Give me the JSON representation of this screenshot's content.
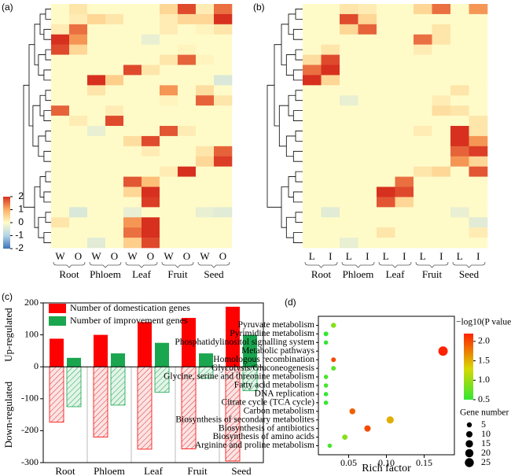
{
  "chart_data": [
    {
      "type": "heatmap",
      "panel_label": "(a)",
      "column_labels": [
        "W",
        "O",
        "W",
        "O",
        "W",
        "O",
        "W",
        "O",
        "W",
        "O"
      ],
      "groups": [
        "Root",
        "Phloem",
        "Leaf",
        "Fruit",
        "Seed"
      ],
      "zlim": [
        -2,
        2
      ],
      "colorbar_ticks": [
        2,
        1,
        0,
        -1,
        -2
      ],
      "values": [
        [
          0,
          0.3,
          0,
          0,
          0,
          0,
          0.5,
          1.8,
          0.2,
          1.5
        ],
        [
          0,
          0.2,
          0.5,
          0.3,
          0,
          0,
          0.2,
          0.5,
          0.5,
          2
        ],
        [
          0.2,
          1.5,
          0,
          0,
          0,
          0,
          0.2,
          0,
          0.1,
          0.3
        ],
        [
          2,
          1.2,
          0,
          0,
          0,
          -0.3,
          0,
          0,
          0,
          0
        ],
        [
          1.8,
          0.5,
          0,
          0,
          0,
          0,
          0,
          0.1,
          0,
          0
        ],
        [
          0,
          0,
          0,
          0,
          0,
          0,
          0.3,
          1.6,
          0.1,
          0
        ],
        [
          0,
          0,
          0,
          0,
          1.8,
          0.3,
          0,
          0,
          0,
          0
        ],
        [
          0,
          0,
          2,
          0.6,
          0,
          0,
          0,
          0,
          0,
          -0.5
        ],
        [
          0,
          0,
          0.3,
          0,
          0,
          0,
          1.2,
          0,
          0.4,
          0
        ],
        [
          0,
          0,
          0,
          0,
          0,
          0,
          0.1,
          0,
          1.6,
          0.3
        ],
        [
          1.6,
          0,
          0,
          0.2,
          0,
          0,
          0,
          0,
          0,
          0
        ],
        [
          0,
          0.2,
          0,
          1.8,
          0,
          0,
          0,
          0,
          0,
          0
        ],
        [
          0,
          0,
          -0.3,
          0,
          0,
          0,
          1.7,
          0.2,
          0,
          0
        ],
        [
          0,
          0,
          0,
          0,
          0.4,
          1.8,
          0,
          0,
          0,
          0
        ],
        [
          0,
          0,
          0,
          0,
          0,
          0.2,
          0,
          0,
          0.3,
          1.6
        ],
        [
          0,
          0,
          0,
          0,
          0,
          0,
          0,
          0,
          0.5,
          1.9
        ],
        [
          0,
          0,
          0,
          0,
          0,
          0,
          0.2,
          2,
          0,
          0
        ],
        [
          0,
          0,
          0,
          0,
          1.7,
          0.8,
          0,
          0,
          0,
          0
        ],
        [
          0,
          0,
          0,
          0,
          0.5,
          2,
          0,
          0,
          0,
          0
        ],
        [
          0,
          0,
          0,
          0,
          0,
          1.9,
          0,
          0,
          0,
          0
        ],
        [
          0,
          -0.5,
          0,
          0,
          -0.3,
          0,
          0,
          0,
          -0.3,
          -0.4
        ],
        [
          0.3,
          0,
          0,
          0,
          1.2,
          2,
          0,
          0,
          0,
          0
        ],
        [
          0,
          0,
          0,
          0,
          1.5,
          2,
          0,
          0,
          0,
          0
        ],
        [
          0,
          0,
          -0.4,
          0,
          0.6,
          1.8,
          0,
          0,
          0,
          0
        ]
      ]
    },
    {
      "type": "heatmap",
      "panel_label": "(b)",
      "column_labels": [
        "L",
        "I",
        "L",
        "I",
        "L",
        "I",
        "L",
        "I",
        "L",
        "I"
      ],
      "groups": [
        "Root",
        "Phloem",
        "Leaf",
        "Fruit",
        "Seed"
      ],
      "zlim": [
        -2,
        2
      ],
      "values": [
        [
          0,
          0,
          0.3,
          0.2,
          0,
          0,
          0.5,
          1.5,
          0,
          1.2
        ],
        [
          0,
          0,
          1.8,
          0.5,
          0,
          0,
          0,
          0,
          0,
          0
        ],
        [
          0,
          0,
          0.5,
          1.6,
          0,
          0,
          0,
          0.3,
          0,
          0
        ],
        [
          0,
          0,
          0,
          0,
          0,
          0,
          1.5,
          0.3,
          0,
          0
        ],
        [
          0,
          0.3,
          0,
          0,
          0,
          0,
          0.2,
          0,
          0,
          0
        ],
        [
          0.4,
          1.8,
          0,
          0,
          0,
          0,
          0,
          0,
          0,
          0
        ],
        [
          1.5,
          2,
          0,
          0,
          0,
          0,
          0,
          0,
          0,
          0
        ],
        [
          2,
          0.5,
          0,
          0,
          0,
          0,
          0,
          0,
          0,
          0
        ],
        [
          0,
          0,
          0,
          0,
          0,
          0,
          0,
          0,
          0.3,
          0
        ],
        [
          0,
          0,
          -0.3,
          0,
          0,
          0,
          0,
          0.2,
          0,
          0
        ],
        [
          0,
          0,
          0,
          0,
          0,
          0,
          0,
          0.4,
          0.3,
          0
        ],
        [
          0,
          0,
          0,
          0,
          0,
          0,
          0,
          0,
          0,
          0.3
        ],
        [
          0,
          0,
          0,
          0,
          0,
          0,
          0.2,
          0,
          2,
          0.3
        ],
        [
          0,
          0,
          0,
          0,
          0,
          0,
          0,
          0,
          2,
          1.2
        ],
        [
          0,
          0,
          0,
          0,
          0,
          0,
          0,
          0,
          1.6,
          1.9
        ],
        [
          0,
          0,
          0,
          0,
          0,
          0,
          0,
          0,
          1.2,
          0.5
        ],
        [
          0,
          0,
          0,
          0,
          0,
          0,
          0.3,
          0.5,
          0,
          1.7
        ],
        [
          0,
          0,
          0,
          0,
          0,
          1.5,
          0,
          0,
          0,
          0
        ],
        [
          0,
          0,
          0,
          0,
          2,
          1.8,
          0,
          0,
          0,
          0
        ],
        [
          0,
          0,
          0,
          0,
          1.7,
          0.5,
          0,
          0,
          0,
          0
        ],
        [
          0,
          -0.4,
          0,
          0,
          0,
          0,
          0,
          0,
          -0.3,
          0
        ],
        [
          0,
          0,
          0,
          0,
          0,
          0,
          0,
          0,
          0,
          -0.4
        ],
        [
          0,
          0,
          0,
          0,
          0.3,
          0,
          0,
          0,
          0,
          0.2
        ],
        [
          0,
          0,
          -0.3,
          0,
          0,
          0,
          0,
          0,
          0,
          0
        ]
      ]
    },
    {
      "type": "bar",
      "panel_label": "(c)",
      "categories": [
        "Root",
        "Phloem",
        "Leaf",
        "Fruit",
        "Seed"
      ],
      "ylabels": [
        "Up-regulated",
        "Down-regulated"
      ],
      "series": [
        {
          "name": "Number of domestication genes",
          "color": "#ff0000",
          "values": [
            88,
            100,
            140,
            153,
            188
          ],
          "down_values": [
            -173,
            -220,
            -258,
            -257,
            -295
          ]
        },
        {
          "name": "Number of improvement genes",
          "color": "#1aa64f",
          "values": [
            28,
            42,
            75,
            42,
            100
          ],
          "down_values": [
            -125,
            -120,
            -80,
            -35,
            -75
          ]
        }
      ],
      "ylim": [
        -300,
        200
      ],
      "yticks": [
        -300,
        -200,
        -100,
        0,
        100,
        200
      ]
    },
    {
      "type": "scatter",
      "panel_label": "(d)",
      "categories": [
        "Pyruvate metabolism",
        "Pyrimidine metabolism",
        "Phosphatidylinositol signalling system",
        "Metabolic pathways",
        "Homologous recombination",
        "Glycolysis/Gluconeogenesis",
        "Glycine, serine and threonine metabolism",
        "Fatty acid metabolism",
        "DNA replication",
        "Citrate cycle (TCA cycle)",
        "Carbon metabolism",
        "Biosynthesis of secondary metabolites",
        "Biosynthesis of antibiotics",
        "Biosynthesis of amino acids",
        "Arginine and proline metabolism"
      ],
      "x": [
        0.03,
        0.02,
        0.02,
        0.175,
        0.03,
        0.03,
        0.02,
        0.02,
        0.02,
        0.02,
        0.055,
        0.105,
        0.075,
        0.045,
        0.025
      ],
      "color_values": [
        0.9,
        0.5,
        0.5,
        2.2,
        2.0,
        0.7,
        0.6,
        0.6,
        0.5,
        0.5,
        1.9,
        1.5,
        2.0,
        0.9,
        0.6
      ],
      "sizes": [
        5,
        4,
        3,
        28,
        4,
        4,
        3,
        3,
        3,
        3,
        8,
        14,
        10,
        6,
        3
      ],
      "xlabel": "Rich factor",
      "xlim": [
        0.01,
        0.19
      ],
      "xticks": [
        0.05,
        {
          "value": 0.1,
          "label": "0.10"
        },
        0.15
      ],
      "color_title": "−log10(P value)",
      "clim": [
        0.5,
        2.2
      ],
      "color_ticks": [
        {
          "value": 2,
          "label": "2.0"
        },
        1.5,
        {
          "value": 1,
          "label": "1.0"
        },
        0.5
      ],
      "size_title": "Gene number",
      "size_ticks": [
        5,
        10,
        15,
        20,
        25
      ]
    }
  ]
}
